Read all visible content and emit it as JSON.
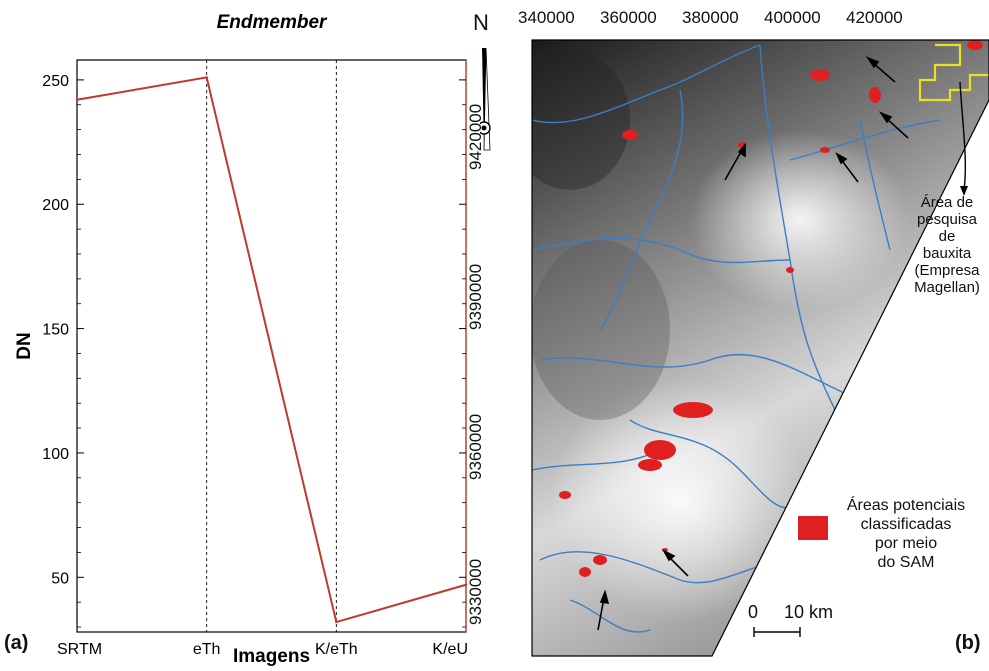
{
  "chart_data": {
    "type": "line",
    "title": "Endmember",
    "xlabel": "Imagens",
    "ylabel": "DN",
    "categories": [
      "SRTM",
      "eTh",
      "K/eTh",
      "K/eU"
    ],
    "values": [
      242,
      251,
      32,
      47
    ],
    "yticks": [
      50,
      100,
      150,
      200,
      250
    ],
    "ylim": [
      28,
      258
    ],
    "line_color": "#c0392b",
    "grid": false
  },
  "labels": {
    "panel_a": "(a)",
    "panel_b": "(b)"
  },
  "map": {
    "north_label": "N",
    "x_ticks": [
      "340000",
      "360000",
      "380000",
      "400000",
      "420000"
    ],
    "y_ticks": [
      "9420000",
      "9390000",
      "9360000",
      "9330000"
    ],
    "area_label_lines": [
      "Área de",
      "pesquisa",
      "de",
      "bauxita",
      "(Empresa",
      "Magellan)"
    ],
    "legend_lines": [
      "Áreas potenciais",
      "classificadas",
      "por meio",
      "do SAM"
    ],
    "legend_color": "#e02020",
    "river_color": "#3a7fc4",
    "boundary_color": "#e8e020",
    "scale_start": "0",
    "scale_end": "10 km"
  }
}
